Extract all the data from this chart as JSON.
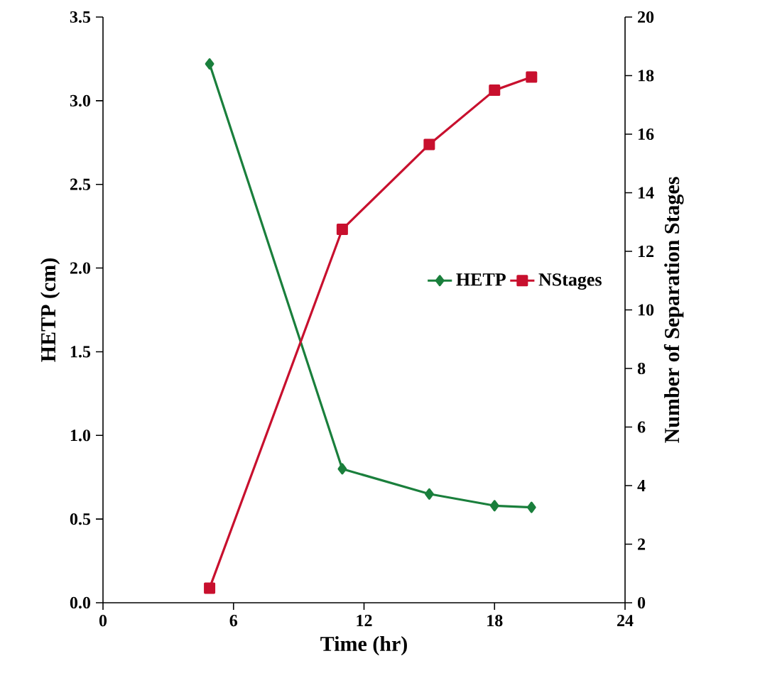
{
  "chart_data": {
    "type": "line",
    "xlabel": "Time (hr)",
    "ylabel": "HETP (cm)",
    "y2label": "Number of Separation Stages",
    "xlim": [
      0,
      24
    ],
    "xticks": [
      0,
      6,
      12,
      18,
      24
    ],
    "ylim": [
      0,
      3.5
    ],
    "yticks": [
      {
        "value": 0,
        "label": "0.0"
      },
      {
        "value": 0.5,
        "label": "0.5"
      },
      {
        "value": 1,
        "label": "1.0"
      },
      {
        "value": 1.5,
        "label": "1.5"
      },
      {
        "value": 2,
        "label": "2.0"
      },
      {
        "value": 2.5,
        "label": "2.5"
      },
      {
        "value": 3,
        "label": "3.0"
      },
      {
        "value": 3.5,
        "label": "3.5"
      }
    ],
    "y2lim": [
      0,
      20
    ],
    "y2ticks": [
      0,
      2,
      4,
      6,
      8,
      10,
      12,
      14,
      16,
      18,
      20
    ],
    "grid": false,
    "legend": "right",
    "series": [
      {
        "name": "HETP",
        "color": "#1a7f3c",
        "marker": "diamond",
        "x": [
          4.9,
          11.0,
          15.0,
          18.0,
          19.7
        ],
        "values": [
          3.22,
          0.8,
          0.65,
          0.58,
          0.57
        ]
      },
      {
        "name": "NStages",
        "color": "#c8102e",
        "marker": "square",
        "axis": "y2",
        "x": [
          4.9,
          11.0,
          15.0,
          18.0,
          19.7
        ],
        "values": [
          0.5,
          12.75,
          15.65,
          17.5,
          17.95
        ]
      }
    ]
  }
}
